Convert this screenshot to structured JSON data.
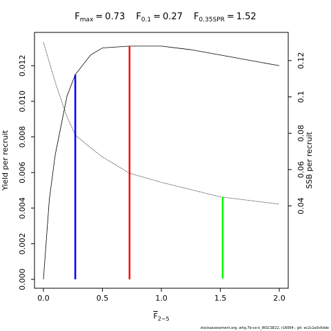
{
  "chart_data": {
    "type": "line",
    "title_relation": "=",
    "reference_points": [
      {
        "name": "F",
        "sub": "max",
        "value": 0.73,
        "top": 0.0131,
        "axis": "y",
        "color": "#ff0000"
      },
      {
        "name": "F",
        "sub": "0.1",
        "value": 0.27,
        "top": 0.0115,
        "axis": "y",
        "color": "#0000ff"
      },
      {
        "name": "F",
        "sub": "0.35SPR",
        "value": 1.52,
        "top": 0.045,
        "axis": "y2",
        "color": "#00ff00"
      }
    ],
    "x_label": {
      "name": "F",
      "sub": "2−5"
    },
    "y_label": "Yield per recruit",
    "y2_label": "SSB per recruit",
    "footnote": "stockassessment.org, whg.7b-ce-k_WGCSE22, r16064 ; git: ec2c2a0c6dde",
    "x": [
      0,
      0.05,
      0.1,
      0.2,
      0.27,
      0.4,
      0.5,
      0.73,
      1.0,
      1.25,
      1.5,
      1.75,
      2.0
    ],
    "series": [
      {
        "name": "Yield per recruit",
        "color": "#000000",
        "axis": "y",
        "values": [
          0,
          0.0045,
          0.007,
          0.0103,
          0.0115,
          0.0126,
          0.013,
          0.0131,
          0.0131,
          0.0129,
          0.0126,
          0.0123,
          0.012
        ]
      },
      {
        "name": "SSB per recruit",
        "color": "#000000",
        "axis": "y2",
        "dashed": true,
        "values": [
          0.13,
          0.119,
          0.108,
          0.089,
          0.079,
          0.072,
          0.067,
          0.058,
          0.053,
          0.049,
          0.045,
          0.043,
          0.041
        ]
      }
    ],
    "xlim": [
      -0.076,
      2.076
    ],
    "ylim": [
      -0.0005,
      0.01387
    ],
    "y2lim": [
      -0.0053,
      0.1355
    ],
    "xticks": [
      {
        "value": 0,
        "label": "0.0"
      },
      0.5,
      {
        "value": 1,
        "label": "1.0"
      },
      1.5,
      {
        "value": 2,
        "label": "2.0"
      }
    ],
    "yticks": [
      {
        "value": 0,
        "label": "0.000"
      },
      {
        "value": 0.002,
        "label": "0.002"
      },
      {
        "value": 0.004,
        "label": "0.004"
      },
      {
        "value": 0.006,
        "label": "0.006"
      },
      {
        "value": 0.008,
        "label": "0.008"
      },
      {
        "value": 0.01,
        "label": "0.010"
      },
      {
        "value": 0.012,
        "label": "0.012"
      }
    ],
    "y2ticks": [
      0.04,
      0.06,
      0.08,
      0.1,
      0.12
    ]
  }
}
